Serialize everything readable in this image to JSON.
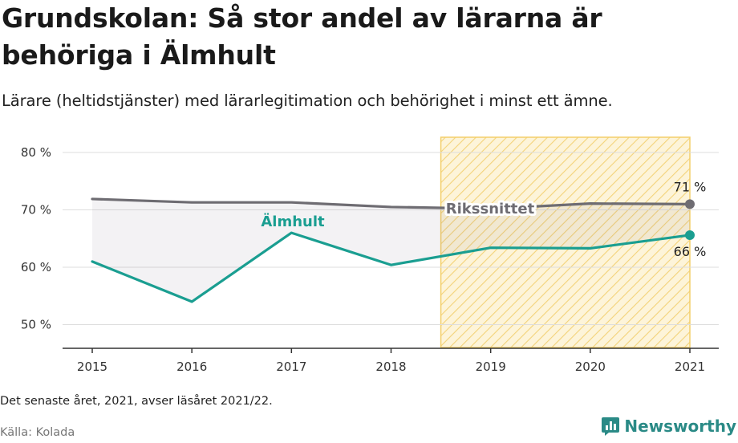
{
  "header": {
    "title": "Grundskolan: Så stor andel av lärarna är behöriga i Älmhult",
    "subtitle": "Lärare (heltidstjänster) med lärarlegitimation och behörighet i minst ett ämne."
  },
  "footer": {
    "note": "Det senaste året, 2021, avser läsåret 2021/22.",
    "source": "Källa: Kolada",
    "brand": "Newsworthy"
  },
  "colors": {
    "almhult": "#1a9e91",
    "riket": "#6e6c72",
    "highlight_fill": "#fdf1cf",
    "highlight_stroke": "#f3cf6a",
    "grid": "#dddddd"
  },
  "chart_data": {
    "type": "line",
    "categories": [
      "2015",
      "2016",
      "2017",
      "2018",
      "2019",
      "2020",
      "2021"
    ],
    "ylim": [
      45,
      82
    ],
    "yticks": [
      50,
      60,
      70,
      80
    ],
    "ytick_labels": [
      "50 %",
      "60 %",
      "70 %",
      "80 %"
    ],
    "highlight_range": [
      "2019",
      "2021"
    ],
    "series": [
      {
        "name": "Rikssnittet",
        "color": "#6e6c72",
        "values": [
          71.9,
          71.3,
          71.3,
          70.5,
          70.2,
          71.1,
          71.0
        ],
        "end_label": "71 %"
      },
      {
        "name": "Älmhult",
        "color": "#1a9e91",
        "values": [
          61.0,
          54.0,
          66.0,
          60.4,
          63.4,
          63.3,
          65.6
        ],
        "end_label": "66 %"
      }
    ]
  }
}
